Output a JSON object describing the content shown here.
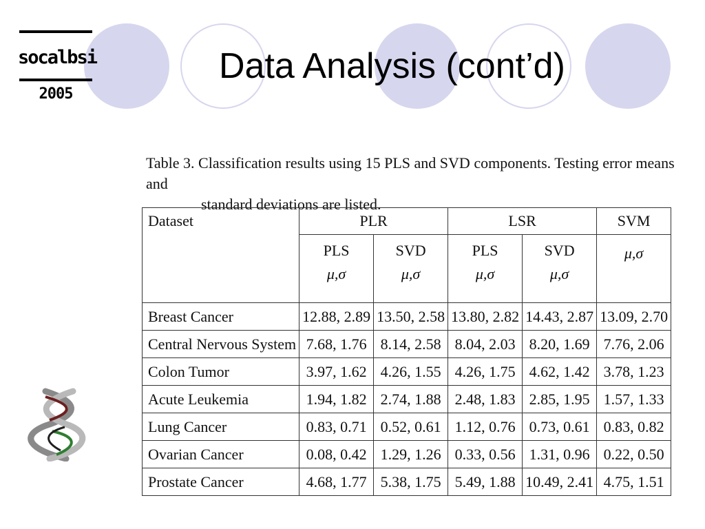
{
  "slide": {
    "title": "Data Analysis (cont’d)",
    "logo": {
      "name": "socalbsi",
      "year": "2005"
    },
    "colors": {
      "circle_fill": "#d6d6ee",
      "circle_outline": "#d6d6ee"
    }
  },
  "caption": {
    "line1": "Table 3. Classification results using 15 PLS and SVD components. Testing error means and",
    "line2": "standard deviations are listed."
  },
  "table": {
    "dataset_header": "Dataset",
    "groups": [
      "PLR",
      "LSR",
      "SVM"
    ],
    "subheaders": [
      "PLS",
      "SVD",
      "PLS",
      "SVD",
      ""
    ],
    "stat_label": "μ,σ",
    "rows": [
      {
        "name": "Breast Cancer",
        "values": [
          "12.88, 2.89",
          "13.50, 2.58",
          "13.80, 2.82",
          "14.43, 2.87",
          "13.09, 2.70"
        ]
      },
      {
        "name": "Central Nervous System",
        "values": [
          "7.68, 1.76",
          "8.14, 2.58",
          "8.04, 2.03",
          "8.20, 1.69",
          "7.76, 2.06"
        ]
      },
      {
        "name": "Colon Tumor",
        "values": [
          "3.97, 1.62",
          "4.26, 1.55",
          "4.26, 1.75",
          "4.62, 1.42",
          "3.78, 1.23"
        ]
      },
      {
        "name": "Acute Leukemia",
        "values": [
          "1.94, 1.82",
          "2.74, 1.88",
          "2.48, 1.83",
          "2.85, 1.95",
          "1.57, 1.33"
        ]
      },
      {
        "name": "Lung Cancer",
        "values": [
          "0.83, 0.71",
          "0.52, 0.61",
          "1.12, 0.76",
          "0.73, 0.61",
          "0.83, 0.82"
        ]
      },
      {
        "name": "Ovarian Cancer",
        "values": [
          "0.08, 0.42",
          "1.29, 1.26",
          "0.33, 0.56",
          "1.31, 0.96",
          "0.22, 0.50"
        ]
      },
      {
        "name": "Prostate Cancer",
        "values": [
          "4.68, 1.77",
          "5.38, 1.75",
          "5.49, 1.88",
          "10.49, 2.41",
          "4.75, 1.51"
        ]
      }
    ]
  }
}
